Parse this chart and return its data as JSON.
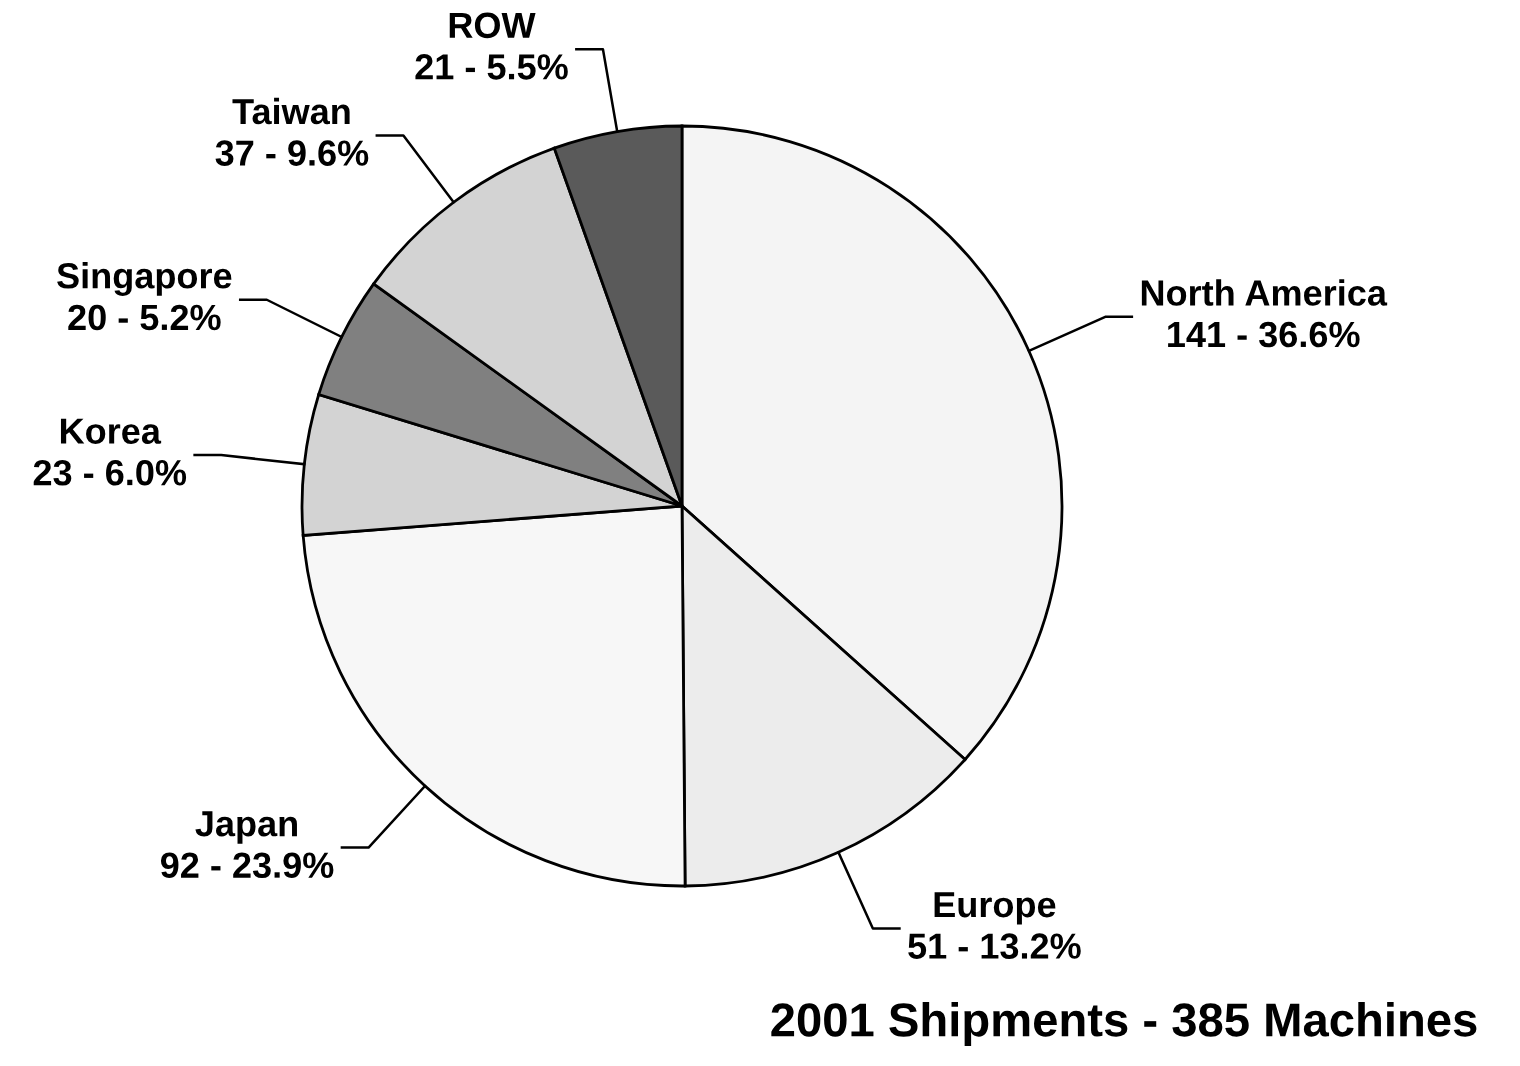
{
  "chart_data": {
    "type": "pie",
    "title": "2001 Shipments - 385 Machines",
    "categories": [
      "North America",
      "Europe",
      "Japan",
      "Korea",
      "Singapore",
      "Taiwan",
      "ROW"
    ],
    "values": [
      141,
      51,
      92,
      23,
      20,
      37,
      21
    ],
    "colors": [
      "#f4f4f4",
      "#ececec",
      "#f7f7f7",
      "#d3d3d3",
      "#808080",
      "#d3d3d3",
      "#5a5a5a"
    ],
    "value_labels": [
      "141 - 36.6%",
      "51 - 13.2%",
      "92 - 23.9%",
      "23 - 6.0%",
      "20 - 5.2%",
      "37 - 9.6%",
      "21 - 5.5%"
    ]
  }
}
